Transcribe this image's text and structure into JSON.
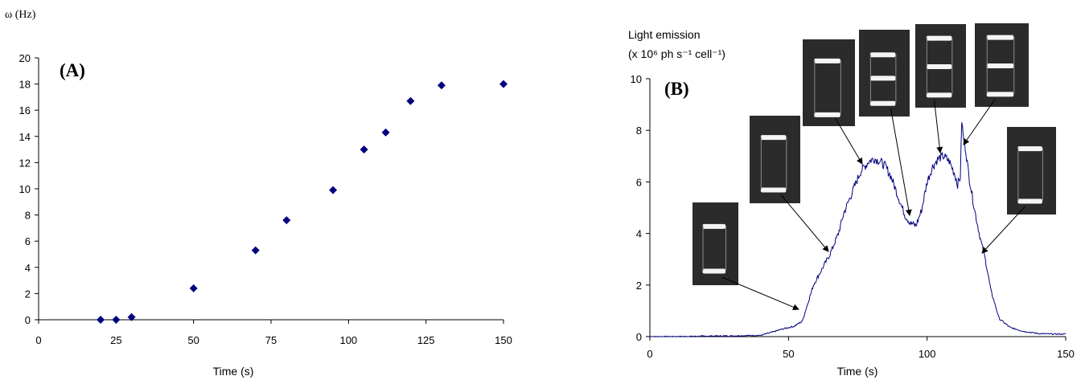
{
  "chart_data": [
    {
      "type": "scatter",
      "panel_label": "(A)",
      "ylabel": "ω (Hz)",
      "xlabel": "Time (s)",
      "xlim": [
        0,
        150
      ],
      "ylim": [
        0,
        20
      ],
      "xticks": [
        0,
        25,
        50,
        75,
        100,
        125,
        150
      ],
      "yticks": [
        0,
        2,
        4,
        6,
        8,
        10,
        12,
        14,
        16,
        18,
        20
      ],
      "grid": false,
      "marker": "diamond",
      "color": "#00007f",
      "points": [
        {
          "x": 20,
          "y": 0
        },
        {
          "x": 25,
          "y": 0
        },
        {
          "x": 30,
          "y": 0.2
        },
        {
          "x": 50,
          "y": 2.4
        },
        {
          "x": 70,
          "y": 5.3
        },
        {
          "x": 80,
          "y": 7.6
        },
        {
          "x": 95,
          "y": 9.9
        },
        {
          "x": 105,
          "y": 13.0
        },
        {
          "x": 112,
          "y": 14.3
        },
        {
          "x": 120,
          "y": 16.7
        },
        {
          "x": 130,
          "y": 17.9
        },
        {
          "x": 150,
          "y": 18.0
        }
      ]
    },
    {
      "type": "line",
      "panel_label": "(B)",
      "ylabel_line1": "Light emission",
      "ylabel_line2": "(x 10⁶ ph s⁻¹ cell⁻¹)",
      "xlabel": "Time (s)",
      "xlim": [
        0,
        150
      ],
      "ylim": [
        0,
        10
      ],
      "xticks": [
        0,
        50,
        100,
        150
      ],
      "yticks": [
        0,
        2,
        4,
        6,
        8,
        10
      ],
      "grid": false,
      "color": "#00007f",
      "series_x": [
        0,
        10,
        20,
        30,
        40,
        45,
        48,
        52,
        55,
        57,
        59,
        62,
        65,
        68,
        70,
        73,
        76,
        79,
        81,
        83,
        85,
        87,
        89,
        91,
        92,
        94,
        96,
        98,
        100,
        102,
        104,
        106,
        108,
        110,
        111,
        112,
        112.5,
        113,
        114,
        115,
        117,
        119,
        121,
        123,
        126,
        130,
        135,
        140,
        145,
        150
      ],
      "series_y": [
        0,
        0,
        0.02,
        0.03,
        0.05,
        0.2,
        0.3,
        0.4,
        0.6,
        1.3,
        2.0,
        2.6,
        3.2,
        4.0,
        4.8,
        5.6,
        6.4,
        6.8,
        6.9,
        6.8,
        6.6,
        6.2,
        5.6,
        5.0,
        4.7,
        4.4,
        4.3,
        4.9,
        6.0,
        6.6,
        6.9,
        7.0,
        6.8,
        6.3,
        5.9,
        6.2,
        8.4,
        7.8,
        7.2,
        6.3,
        5.0,
        3.9,
        3.0,
        1.8,
        0.7,
        0.35,
        0.2,
        0.12,
        0.1,
        0.1
      ]
    }
  ]
}
